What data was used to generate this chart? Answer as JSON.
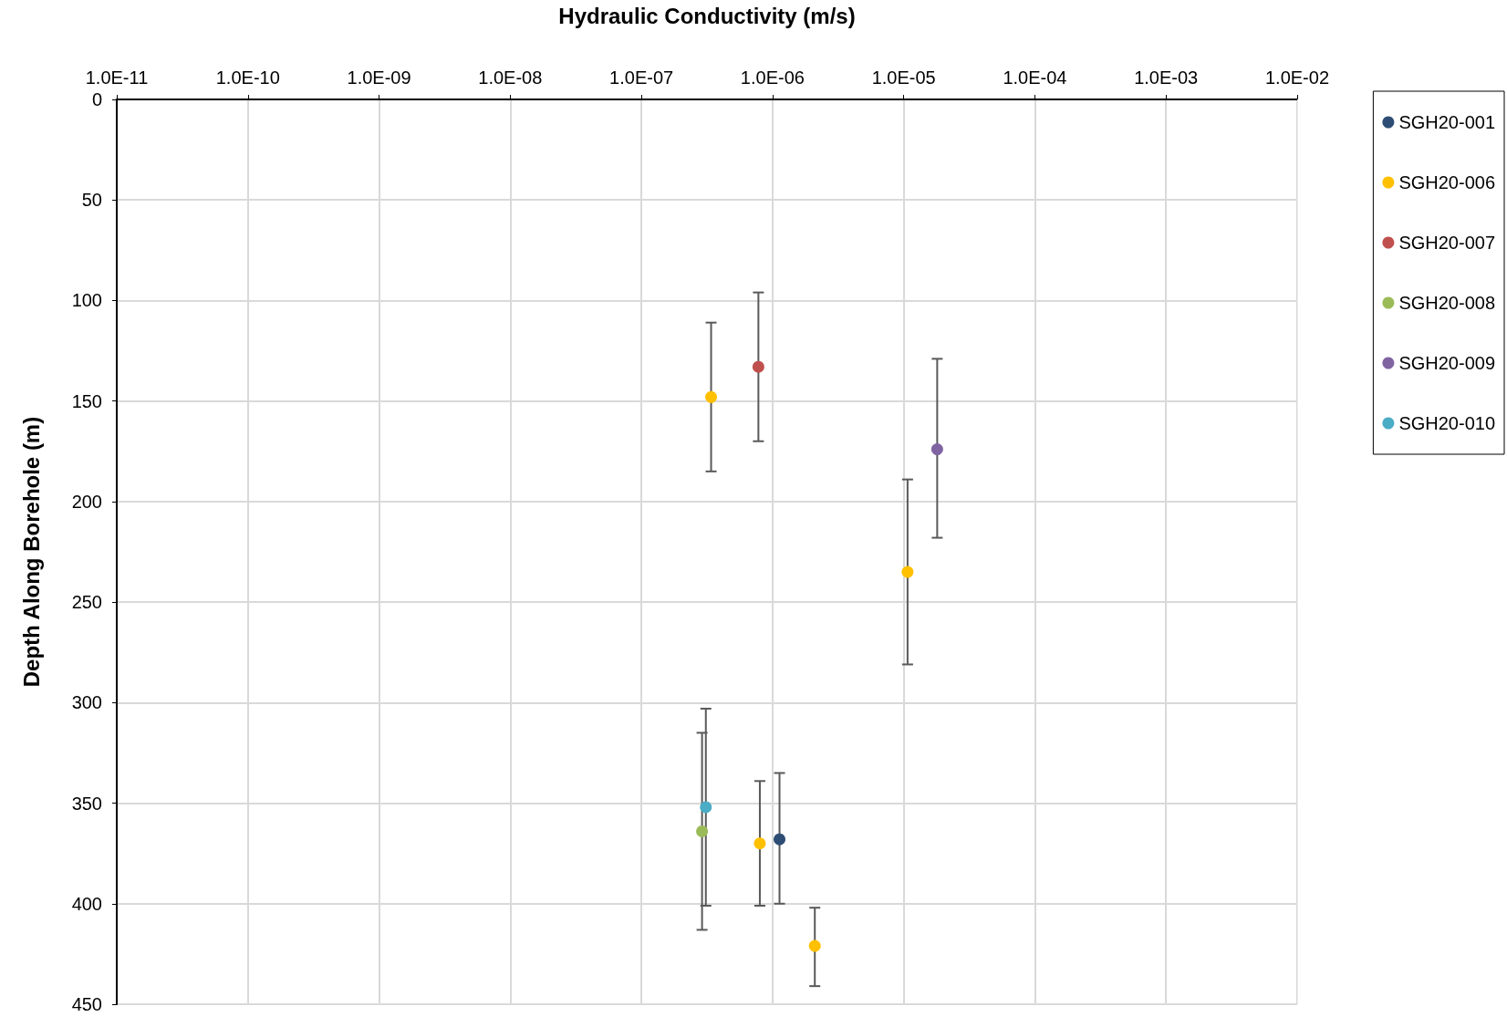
{
  "chart_data": {
    "type": "scatter",
    "xlabel": "Hydraulic Conductivity (m/s)",
    "ylabel": "Depth Along Borehole (m)",
    "log": "x",
    "grid": true,
    "legend": "right",
    "marker": "circle",
    "xlim": [
      1e-11,
      0.01
    ],
    "xticks": [
      {
        "value": 1e-11,
        "label": "1.0E-11"
      },
      {
        "value": 1e-10,
        "label": "1.0E-10"
      },
      {
        "value": 1e-09,
        "label": "1.0E-09"
      },
      {
        "value": 1e-08,
        "label": "1.0E-08"
      },
      {
        "value": 1e-07,
        "label": "1.0E-07"
      },
      {
        "value": 1e-06,
        "label": "1.0E-06"
      },
      {
        "value": 1e-05,
        "label": "1.0E-05"
      },
      {
        "value": 0.0001,
        "label": "1.0E-04"
      },
      {
        "value": 0.001,
        "label": "1.0E-03"
      },
      {
        "value": 0.01,
        "label": "1.0E-02"
      }
    ],
    "ylim": [
      450,
      0
    ],
    "yticks": [
      0,
      50,
      100,
      150,
      200,
      250,
      300,
      350,
      400,
      450
    ],
    "series": [
      {
        "name": "SGH20-001",
        "color": "#2e4d74",
        "x": [
          1.13e-06
        ],
        "values": [
          368
        ],
        "errors": [
          [
            335,
            400
          ]
        ]
      },
      {
        "name": "SGH20-006",
        "color": "#ffc000",
        "x": [
          3.4e-07,
          1.07e-05,
          8e-07,
          2.1e-06
        ],
        "values": [
          148,
          235,
          370,
          421
        ],
        "errors": [
          [
            111,
            185
          ],
          [
            189,
            281
          ],
          [
            339,
            401
          ],
          [
            402,
            441
          ]
        ]
      },
      {
        "name": "SGH20-007",
        "color": "#c0504d",
        "x": [
          7.8e-07
        ],
        "values": [
          133
        ],
        "errors": [
          [
            96,
            170
          ]
        ]
      },
      {
        "name": "SGH20-008",
        "color": "#9bbb59",
        "x": [
          2.9e-07
        ],
        "values": [
          364
        ],
        "errors": [
          [
            315,
            413
          ]
        ]
      },
      {
        "name": "SGH20-009",
        "color": "#8064a2",
        "x": [
          1.8e-05
        ],
        "values": [
          174
        ],
        "errors": [
          [
            129,
            218
          ]
        ]
      },
      {
        "name": "SGH20-010",
        "color": "#4bacc6",
        "x": [
          3.1e-07
        ],
        "values": [
          352
        ],
        "errors": [
          [
            303,
            401
          ]
        ]
      }
    ]
  }
}
